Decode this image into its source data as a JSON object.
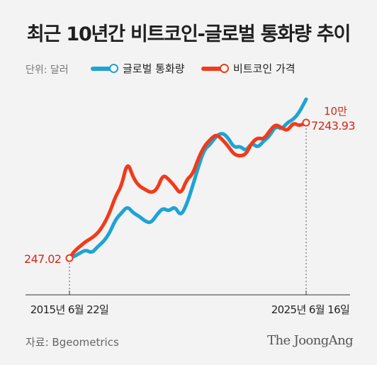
{
  "header": {
    "title": "최근 10년간 비트코인-글로벌 통화량 추이",
    "unit_label": "단위: 달러"
  },
  "legend": [
    {
      "name": "글로벌 통화량",
      "color": "#1ea3d4"
    },
    {
      "name": "비트코인 가격",
      "color": "#f23a1a"
    }
  ],
  "footer": {
    "source": "자료: Bgeometrics",
    "brand": "The JoongAng"
  },
  "chart_data": {
    "type": "line",
    "x_ticks": [
      "2015년 6월 22일",
      "2025년 6월 16일"
    ],
    "axis_date_range": [
      "2015-06-22",
      "2025-06-16"
    ],
    "annotations": {
      "start_value": "247.02",
      "end_value_line1": "10만",
      "end_value_line2": "7243.93"
    },
    "series": [
      {
        "name": "글로벌 통화량",
        "color": "#1ea3d4",
        "points": [
          [
            "2015-06-22",
            0.05
          ],
          [
            "2015-09-01",
            0.06
          ],
          [
            "2015-12-01",
            0.08
          ],
          [
            "2016-03-01",
            0.1
          ],
          [
            "2016-06-01",
            0.08
          ],
          [
            "2016-09-01",
            0.12
          ],
          [
            "2016-12-01",
            0.15
          ],
          [
            "2017-03-01",
            0.2
          ],
          [
            "2017-06-01",
            0.28
          ],
          [
            "2017-09-01",
            0.32
          ],
          [
            "2017-12-01",
            0.36
          ],
          [
            "2018-03-01",
            0.32
          ],
          [
            "2018-06-01",
            0.3
          ],
          [
            "2018-09-01",
            0.27
          ],
          [
            "2018-12-01",
            0.26
          ],
          [
            "2019-03-01",
            0.31
          ],
          [
            "2019-06-01",
            0.35
          ],
          [
            "2019-09-01",
            0.33
          ],
          [
            "2019-12-01",
            0.36
          ],
          [
            "2020-03-01",
            0.3
          ],
          [
            "2020-06-01",
            0.37
          ],
          [
            "2020-09-01",
            0.48
          ],
          [
            "2020-12-01",
            0.6
          ],
          [
            "2021-03-01",
            0.7
          ],
          [
            "2021-06-01",
            0.73
          ],
          [
            "2021-09-01",
            0.78
          ],
          [
            "2021-12-01",
            0.8
          ],
          [
            "2022-03-01",
            0.77
          ],
          [
            "2022-06-01",
            0.71
          ],
          [
            "2022-09-01",
            0.72
          ],
          [
            "2022-12-01",
            0.69
          ],
          [
            "2023-03-01",
            0.74
          ],
          [
            "2023-06-01",
            0.71
          ],
          [
            "2023-09-01",
            0.75
          ],
          [
            "2023-12-01",
            0.78
          ],
          [
            "2024-03-01",
            0.84
          ],
          [
            "2024-06-01",
            0.82
          ],
          [
            "2024-09-01",
            0.86
          ],
          [
            "2024-12-01",
            0.88
          ],
          [
            "2025-03-01",
            0.92
          ],
          [
            "2025-06-16",
            1.0
          ]
        ]
      },
      {
        "name": "비트코인 가격",
        "color": "#f23a1a",
        "points": [
          [
            "2015-06-22",
            0.05
          ],
          [
            "2015-09-01",
            0.09
          ],
          [
            "2015-12-01",
            0.12
          ],
          [
            "2016-03-01",
            0.15
          ],
          [
            "2016-06-01",
            0.17
          ],
          [
            "2016-09-01",
            0.2
          ],
          [
            "2016-12-01",
            0.25
          ],
          [
            "2017-03-01",
            0.32
          ],
          [
            "2017-06-01",
            0.42
          ],
          [
            "2017-09-01",
            0.48
          ],
          [
            "2017-12-01",
            0.63
          ],
          [
            "2018-03-01",
            0.53
          ],
          [
            "2018-06-01",
            0.48
          ],
          [
            "2018-09-01",
            0.46
          ],
          [
            "2018-12-01",
            0.44
          ],
          [
            "2019-03-01",
            0.46
          ],
          [
            "2019-06-01",
            0.55
          ],
          [
            "2019-09-01",
            0.52
          ],
          [
            "2019-12-01",
            0.48
          ],
          [
            "2020-03-01",
            0.43
          ],
          [
            "2020-06-01",
            0.52
          ],
          [
            "2020-09-01",
            0.55
          ],
          [
            "2020-12-01",
            0.65
          ],
          [
            "2021-03-01",
            0.72
          ],
          [
            "2021-06-01",
            0.76
          ],
          [
            "2021-09-01",
            0.79
          ],
          [
            "2021-12-01",
            0.76
          ],
          [
            "2022-03-01",
            0.72
          ],
          [
            "2022-06-01",
            0.67
          ],
          [
            "2022-09-01",
            0.66
          ],
          [
            "2022-12-01",
            0.67
          ],
          [
            "2023-03-01",
            0.74
          ],
          [
            "2023-06-01",
            0.77
          ],
          [
            "2023-09-01",
            0.76
          ],
          [
            "2023-12-01",
            0.81
          ],
          [
            "2024-03-01",
            0.85
          ],
          [
            "2024-06-01",
            0.83
          ],
          [
            "2024-09-01",
            0.81
          ],
          [
            "2024-12-01",
            0.86
          ],
          [
            "2025-03-01",
            0.84
          ],
          [
            "2025-06-16",
            0.86
          ]
        ]
      }
    ],
    "grid": false,
    "legend_position": "top-left"
  }
}
